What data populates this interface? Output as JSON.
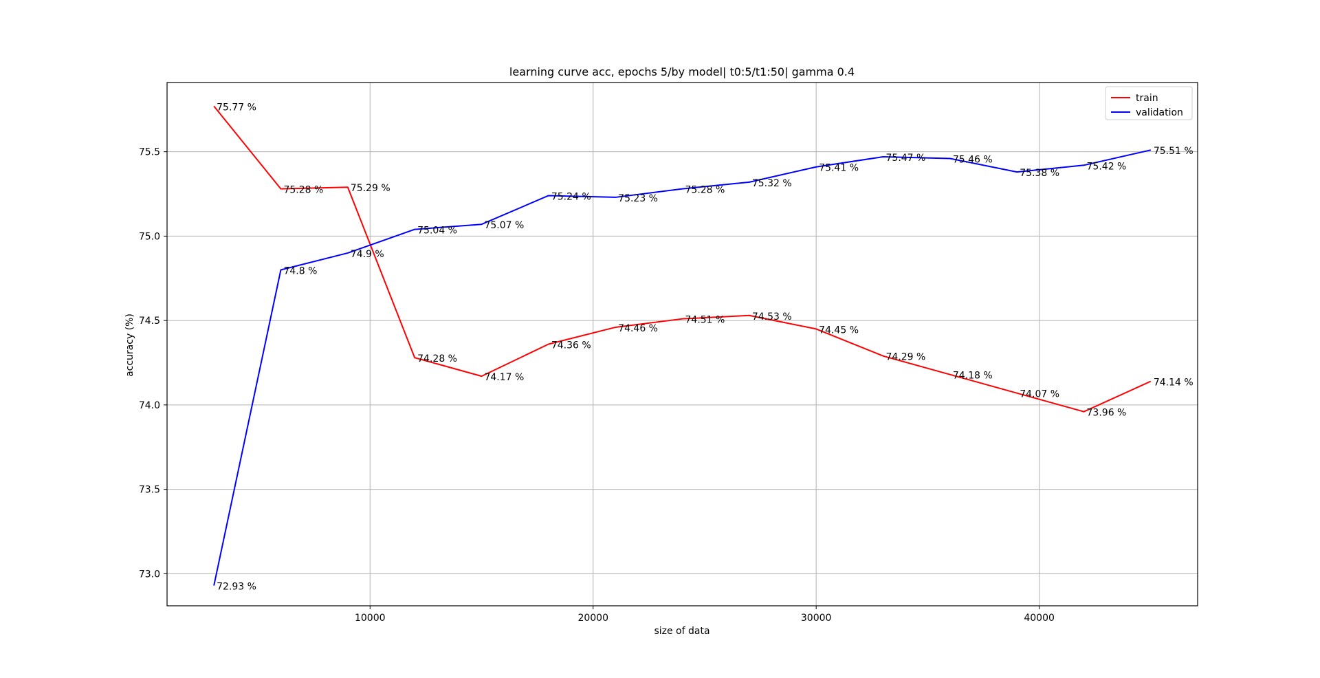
{
  "chart_data": {
    "type": "line",
    "title": "learning curve acc, epochs 5/by model| t0:5/t1:50| gamma 0.4",
    "xlabel": "size of data",
    "ylabel": "accuracy (%)",
    "x": [
      3000,
      6000,
      9000,
      12000,
      15000,
      18000,
      21000,
      24000,
      27000,
      30000,
      33000,
      36000,
      39000,
      42000,
      45000
    ],
    "xlim": [
      900,
      47100
    ],
    "ylim": [
      72.81,
      75.91
    ],
    "xticks": [
      10000,
      20000,
      30000,
      40000
    ],
    "yticks": [
      73.0,
      73.5,
      74.0,
      74.5,
      75.0,
      75.5
    ],
    "xtick_labels": [
      "10000",
      "20000",
      "30000",
      "40000"
    ],
    "ytick_labels": [
      "73.0",
      "73.5",
      "74.0",
      "74.5",
      "75.0",
      "75.5"
    ],
    "grid": true,
    "legend_position": "top-right",
    "series": [
      {
        "name": "train",
        "color": "#ff0000",
        "values": [
          75.77,
          75.28,
          75.29,
          74.28,
          74.17,
          74.36,
          74.46,
          74.51,
          74.53,
          74.45,
          74.29,
          74.18,
          74.07,
          73.96,
          74.14
        ],
        "labels": [
          "75.77 %",
          "75.28 %",
          "75.29 %",
          "74.28 %",
          "74.17 %",
          "74.36 %",
          "74.46 %",
          "74.51 %",
          "74.53 %",
          "74.45 %",
          "74.29 %",
          "74.18 %",
          "74.07 %",
          "73.96 %",
          "74.14 %"
        ]
      },
      {
        "name": "validation",
        "color": "#0000ff",
        "values": [
          72.93,
          74.8,
          74.9,
          75.04,
          75.07,
          75.24,
          75.23,
          75.28,
          75.32,
          75.41,
          75.47,
          75.46,
          75.38,
          75.42,
          75.51
        ],
        "labels": [
          "72.93 %",
          "74.8 %",
          "74.9 %",
          "75.04 %",
          "75.07 %",
          "75.24 %",
          "75.23 %",
          "75.28 %",
          "75.32 %",
          "75.41 %",
          "75.47 %",
          "75.46 %",
          "75.38 %",
          "75.42 %",
          "75.51 %"
        ]
      }
    ]
  }
}
